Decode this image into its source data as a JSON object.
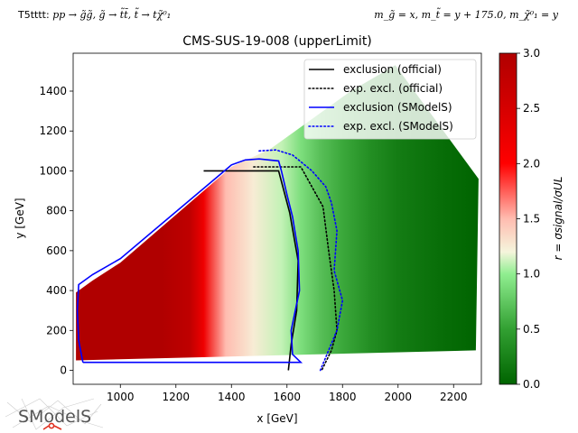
{
  "header": {
    "process_id": "T5tttt:",
    "process_formula": "pp → g̃g̃, g̃ → t̃t̄, t̃ → tχ̃⁰₁",
    "mass_relation": "m_g̃ = x, m_t̃ = y + 175.0, m_χ̃⁰₁ = y"
  },
  "logo": {
    "text": "SModelS"
  },
  "colors": {
    "official_exclusion": "#000000",
    "smodels_exclusion": "#0000ff",
    "cmap_low": "#006400",
    "cmap_mid_low": "#90ee90",
    "cmap_mid": "#f5f5dc",
    "cmap_mid_high": "#ff0000",
    "cmap_high": "#b00000"
  },
  "chart_data": {
    "type": "heatmap",
    "title": "CMS-SUS-19-008 (upperLimit)",
    "xlabel": "x [GeV]",
    "ylabel": "y [GeV]",
    "colorbar_label": "r = σsignal/σUL",
    "xlim": [
      830,
      2300
    ],
    "ylim": [
      -70,
      1590
    ],
    "clim": [
      0.0,
      3.0
    ],
    "x_ticks": [
      1000,
      1200,
      1400,
      1600,
      1800,
      2000,
      2200
    ],
    "y_ticks": [
      0,
      200,
      400,
      600,
      800,
      1000,
      1200,
      1400
    ],
    "colorbar_ticks": [
      "0.0",
      "0.5",
      "1.0",
      "1.5",
      "2.0",
      "2.5",
      "3.0"
    ],
    "colorbar_tick_values": [
      0.0,
      0.5,
      1.0,
      1.5,
      2.0,
      2.5,
      3.0
    ],
    "legend_position": "top-right",
    "region_outline": [
      [
        840,
        50
      ],
      [
        2280,
        100
      ],
      [
        2290,
        960
      ],
      [
        1990,
        1530
      ],
      [
        1830,
        1400
      ],
      [
        1540,
        1110
      ],
      [
        1400,
        1020
      ],
      [
        1200,
        780
      ],
      [
        1000,
        540
      ],
      [
        900,
        450
      ],
      [
        840,
        390
      ]
    ],
    "r_profile": [
      {
        "x": 840,
        "r": 3.0
      },
      {
        "x": 1150,
        "r": 3.0
      },
      {
        "x": 1250,
        "r": 2.8
      },
      {
        "x": 1300,
        "r": 2.2
      },
      {
        "x": 1380,
        "r": 1.5
      },
      {
        "x": 1480,
        "r": 1.25
      },
      {
        "x": 1580,
        "r": 1.1
      },
      {
        "x": 1650,
        "r": 0.9
      },
      {
        "x": 1720,
        "r": 0.7
      },
      {
        "x": 1800,
        "r": 0.55
      },
      {
        "x": 1900,
        "r": 0.35
      },
      {
        "x": 2000,
        "r": 0.2
      },
      {
        "x": 2150,
        "r": 0.08
      },
      {
        "x": 2290,
        "r": 0.0
      }
    ],
    "series": [
      {
        "name": "exclusion (official)",
        "style": "solid",
        "color": "#000000",
        "points": [
          [
            1300,
            1000
          ],
          [
            1570,
            1000
          ],
          [
            1610,
            790
          ],
          [
            1640,
            550
          ],
          [
            1635,
            300
          ],
          [
            1615,
            130
          ],
          [
            1605,
            0
          ]
        ]
      },
      {
        "name": "exp. excl. (official)",
        "style": "dotted",
        "color": "#000000",
        "points": [
          [
            1480,
            1020
          ],
          [
            1650,
            1020
          ],
          [
            1690,
            920
          ],
          [
            1730,
            820
          ],
          [
            1750,
            600
          ],
          [
            1770,
            400
          ],
          [
            1780,
            200
          ],
          [
            1760,
            100
          ],
          [
            1725,
            0
          ]
        ]
      },
      {
        "name": "exclusion (SModelS)",
        "style": "solid",
        "color": "#0000ff",
        "points": [
          [
            865,
            40
          ],
          [
            1650,
            40
          ],
          [
            1620,
            80
          ],
          [
            1615,
            200
          ],
          [
            1630,
            300
          ],
          [
            1645,
            400
          ],
          [
            1640,
            600
          ],
          [
            1620,
            770
          ],
          [
            1600,
            880
          ],
          [
            1580,
            1000
          ],
          [
            1570,
            1050
          ],
          [
            1500,
            1060
          ],
          [
            1450,
            1055
          ],
          [
            1400,
            1030
          ],
          [
            1000,
            560
          ],
          [
            900,
            480
          ],
          [
            850,
            430
          ],
          [
            845,
            300
          ],
          [
            850,
            150
          ],
          [
            865,
            40
          ]
        ]
      },
      {
        "name": "exp. excl. (SModelS)",
        "style": "dotted",
        "color": "#0000ff",
        "points": [
          [
            1500,
            1100
          ],
          [
            1560,
            1105
          ],
          [
            1620,
            1080
          ],
          [
            1690,
            1000
          ],
          [
            1740,
            920
          ],
          [
            1760,
            840
          ],
          [
            1780,
            700
          ],
          [
            1770,
            500
          ],
          [
            1800,
            350
          ],
          [
            1780,
            200
          ],
          [
            1750,
            100
          ],
          [
            1720,
            0
          ]
        ]
      }
    ]
  }
}
